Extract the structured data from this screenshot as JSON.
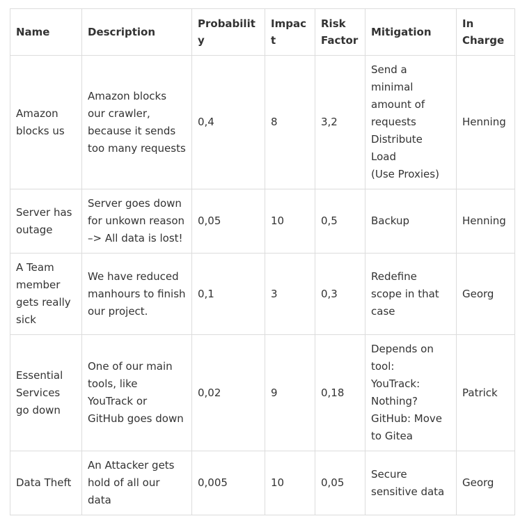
{
  "table": {
    "headers": [
      "Name",
      "Description",
      "Probability",
      "Impact",
      "Risk\nFactor",
      "Mitigation",
      "In\nCharge"
    ],
    "rows": [
      {
        "name": "Amazon blocks us",
        "description": "Amazon blocks our crawler, because it sends too many requests",
        "probability": "0,4",
        "impact": "8",
        "risk_factor": "3,2",
        "mitigation": [
          "Send a minimal amount of requests",
          "Distribute Load",
          "(Use Proxies)"
        ],
        "in_charge": "Henning"
      },
      {
        "name": "Server has outage",
        "description": "Server goes down for unkown reason –> All data is lost!",
        "probability": "0,05",
        "impact": "10",
        "risk_factor": "0,5",
        "mitigation": [
          "Backup"
        ],
        "in_charge": "Henning"
      },
      {
        "name": "A Team member gets really sick",
        "description": "We have reduced manhours to finish our project.",
        "probability": "0,1",
        "impact": "3",
        "risk_factor": "0,3",
        "mitigation": [
          "Redefine scope in that case"
        ],
        "in_charge": "Georg"
      },
      {
        "name": "Essential Services go down",
        "description": "One of our main tools, like YouTrack or GitHub goes down",
        "probability": "0,02",
        "impact": "9",
        "risk_factor": "0,18",
        "mitigation": [
          "Depends on tool:",
          "YouTrack: Nothing?",
          "GitHub: Move to Gitea"
        ],
        "in_charge": "Patrick"
      },
      {
        "name": "Data Theft",
        "description": "An Attacker gets hold of all our data",
        "probability": "0,005",
        "impact": "10",
        "risk_factor": "0,05",
        "mitigation": [
          "Secure sensitive data"
        ],
        "in_charge": "Georg"
      }
    ]
  }
}
